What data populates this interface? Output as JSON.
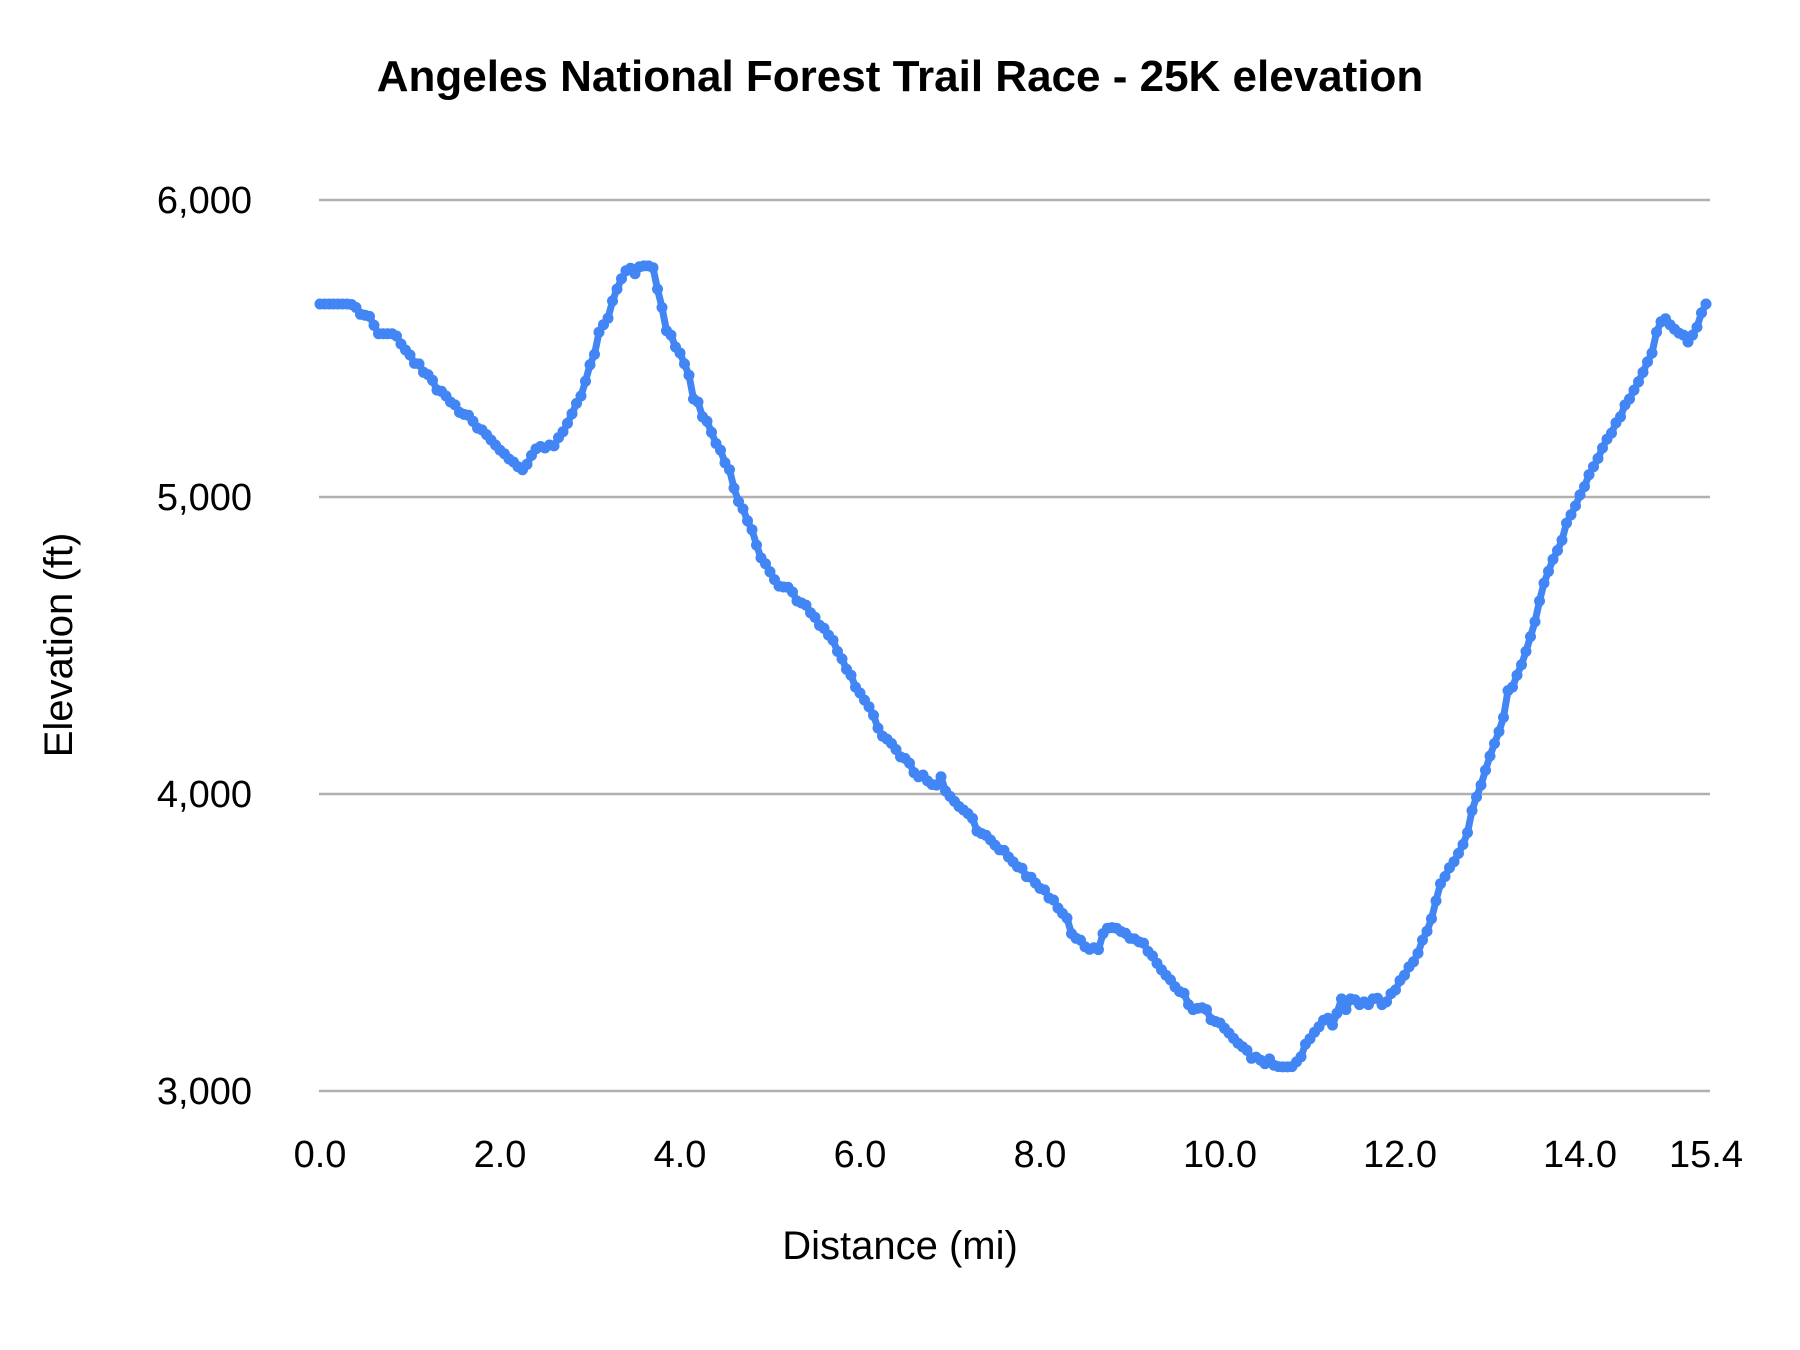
{
  "chart_data": {
    "type": "line",
    "title": "Angeles National Forest Trail Race - 25K elevation",
    "xlabel": "Distance (mi)",
    "ylabel": "Elevation (ft)",
    "xlim": [
      0,
      15.4
    ],
    "ylim": [
      3000,
      6200
    ],
    "grid": true,
    "legend": "none",
    "gridline_color": "#b0b0b0",
    "x_ticks": [
      {
        "value": 0,
        "label": "0.0"
      },
      {
        "value": 2,
        "label": "2.0"
      },
      {
        "value": 4,
        "label": "4.0"
      },
      {
        "value": 6,
        "label": "6.0"
      },
      {
        "value": 8,
        "label": "8.0"
      },
      {
        "value": 10,
        "label": "10.0"
      },
      {
        "value": 12,
        "label": "12.0"
      },
      {
        "value": 14,
        "label": "14.0"
      },
      {
        "value": 15.4,
        "label": "15.4"
      }
    ],
    "y_ticks": [
      {
        "value": 3000,
        "label": "3,000"
      },
      {
        "value": 4000,
        "label": "4,000"
      },
      {
        "value": 5000,
        "label": "5,000"
      },
      {
        "value": 6000,
        "label": "6,000"
      }
    ],
    "series": [
      {
        "name": "elevation",
        "color": "#4285F4",
        "marker": "circle",
        "points": [
          [
            0,
            5650
          ],
          [
            0.05,
            5650
          ],
          [
            0.1,
            5650
          ],
          [
            0.15,
            5650
          ],
          [
            0.2,
            5650
          ],
          [
            0.25,
            5650
          ],
          [
            0.3,
            5650
          ],
          [
            0.35,
            5648
          ],
          [
            0.4,
            5638
          ],
          [
            0.45,
            5615
          ],
          [
            0.5,
            5612
          ],
          [
            0.55,
            5608
          ],
          [
            0.6,
            5578
          ],
          [
            0.65,
            5550
          ],
          [
            0.7,
            5550
          ],
          [
            0.75,
            5550
          ],
          [
            0.8,
            5550
          ],
          [
            0.85,
            5542
          ],
          [
            0.9,
            5515
          ],
          [
            0.95,
            5495
          ],
          [
            1,
            5478
          ],
          [
            1.05,
            5450
          ],
          [
            1.1,
            5448
          ],
          [
            1.15,
            5420
          ],
          [
            1.2,
            5412
          ],
          [
            1.25,
            5393
          ],
          [
            1.3,
            5360
          ],
          [
            1.35,
            5356
          ],
          [
            1.4,
            5340
          ],
          [
            1.45,
            5320
          ],
          [
            1.5,
            5310
          ],
          [
            1.55,
            5285
          ],
          [
            1.6,
            5278
          ],
          [
            1.65,
            5275
          ],
          [
            1.7,
            5255
          ],
          [
            1.75,
            5232
          ],
          [
            1.8,
            5226
          ],
          [
            1.85,
            5210
          ],
          [
            1.9,
            5192
          ],
          [
            1.95,
            5175
          ],
          [
            2,
            5158
          ],
          [
            2.05,
            5145
          ],
          [
            2.1,
            5128
          ],
          [
            2.15,
            5118
          ],
          [
            2.2,
            5102
          ],
          [
            2.25,
            5092
          ],
          [
            2.3,
            5110
          ],
          [
            2.35,
            5140
          ],
          [
            2.4,
            5162
          ],
          [
            2.45,
            5170
          ],
          [
            2.5,
            5165
          ],
          [
            2.55,
            5175
          ],
          [
            2.6,
            5172
          ],
          [
            2.65,
            5200
          ],
          [
            2.7,
            5220
          ],
          [
            2.75,
            5248
          ],
          [
            2.8,
            5280
          ],
          [
            2.85,
            5315
          ],
          [
            2.9,
            5340
          ],
          [
            2.95,
            5390
          ],
          [
            3,
            5445
          ],
          [
            3.05,
            5480
          ],
          [
            3.1,
            5555
          ],
          [
            3.15,
            5580
          ],
          [
            3.2,
            5602
          ],
          [
            3.25,
            5660
          ],
          [
            3.3,
            5700
          ],
          [
            3.35,
            5735
          ],
          [
            3.4,
            5762
          ],
          [
            3.45,
            5770
          ],
          [
            3.5,
            5752
          ],
          [
            3.55,
            5775
          ],
          [
            3.6,
            5778
          ],
          [
            3.65,
            5778
          ],
          [
            3.7,
            5772
          ],
          [
            3.75,
            5700
          ],
          [
            3.8,
            5638
          ],
          [
            3.85,
            5560
          ],
          [
            3.9,
            5545
          ],
          [
            3.95,
            5505
          ],
          [
            4,
            5485
          ],
          [
            4.05,
            5448
          ],
          [
            4.1,
            5410
          ],
          [
            4.15,
            5330
          ],
          [
            4.2,
            5320
          ],
          [
            4.25,
            5270
          ],
          [
            4.3,
            5255
          ],
          [
            4.35,
            5218
          ],
          [
            4.4,
            5180
          ],
          [
            4.45,
            5158
          ],
          [
            4.5,
            5115
          ],
          [
            4.55,
            5092
          ],
          [
            4.6,
            5030
          ],
          [
            4.65,
            4985
          ],
          [
            4.7,
            4960
          ],
          [
            4.75,
            4920
          ],
          [
            4.8,
            4890
          ],
          [
            4.85,
            4838
          ],
          [
            4.9,
            4795
          ],
          [
            4.95,
            4775
          ],
          [
            5,
            4748
          ],
          [
            5.05,
            4722
          ],
          [
            5.1,
            4700
          ],
          [
            5.15,
            4697
          ],
          [
            5.2,
            4696
          ],
          [
            5.25,
            4680
          ],
          [
            5.3,
            4650
          ],
          [
            5.35,
            4643
          ],
          [
            5.4,
            4636
          ],
          [
            5.45,
            4610
          ],
          [
            5.5,
            4595
          ],
          [
            5.55,
            4568
          ],
          [
            5.6,
            4558
          ],
          [
            5.65,
            4535
          ],
          [
            5.7,
            4518
          ],
          [
            5.75,
            4480
          ],
          [
            5.8,
            4455
          ],
          [
            5.85,
            4420
          ],
          [
            5.9,
            4400
          ],
          [
            5.95,
            4360
          ],
          [
            6,
            4340
          ],
          [
            6.05,
            4316
          ],
          [
            6.1,
            4294
          ],
          [
            6.15,
            4265
          ],
          [
            6.2,
            4222
          ],
          [
            6.25,
            4195
          ],
          [
            6.3,
            4185
          ],
          [
            6.35,
            4170
          ],
          [
            6.4,
            4150
          ],
          [
            6.45,
            4125
          ],
          [
            6.5,
            4120
          ],
          [
            6.55,
            4104
          ],
          [
            6.6,
            4072
          ],
          [
            6.65,
            4058
          ],
          [
            6.7,
            4064
          ],
          [
            6.75,
            4044
          ],
          [
            6.8,
            4032
          ],
          [
            6.85,
            4030
          ],
          [
            6.9,
            4058
          ],
          [
            6.95,
            4010
          ],
          [
            7,
            3992
          ],
          [
            7.05,
            3975
          ],
          [
            7.1,
            3958
          ],
          [
            7.15,
            3946
          ],
          [
            7.2,
            3934
          ],
          [
            7.25,
            3918
          ],
          [
            7.3,
            3875
          ],
          [
            7.35,
            3867
          ],
          [
            7.4,
            3861
          ],
          [
            7.45,
            3845
          ],
          [
            7.5,
            3828
          ],
          [
            7.55,
            3812
          ],
          [
            7.6,
            3810
          ],
          [
            7.65,
            3788
          ],
          [
            7.7,
            3772
          ],
          [
            7.75,
            3755
          ],
          [
            7.8,
            3750
          ],
          [
            7.85,
            3722
          ],
          [
            7.9,
            3720
          ],
          [
            7.95,
            3700
          ],
          [
            8,
            3682
          ],
          [
            8.05,
            3677
          ],
          [
            8.1,
            3650
          ],
          [
            8.15,
            3643
          ],
          [
            8.2,
            3616
          ],
          [
            8.25,
            3598
          ],
          [
            8.3,
            3582
          ],
          [
            8.35,
            3530
          ],
          [
            8.4,
            3514
          ],
          [
            8.45,
            3508
          ],
          [
            8.5,
            3486
          ],
          [
            8.55,
            3477
          ],
          [
            8.6,
            3482
          ],
          [
            8.65,
            3476
          ],
          [
            8.7,
            3530
          ],
          [
            8.75,
            3548
          ],
          [
            8.8,
            3550
          ],
          [
            8.85,
            3548
          ],
          [
            8.9,
            3537
          ],
          [
            8.95,
            3531
          ],
          [
            9,
            3514
          ],
          [
            9.05,
            3512
          ],
          [
            9.1,
            3502
          ],
          [
            9.15,
            3498
          ],
          [
            9.2,
            3470
          ],
          [
            9.25,
            3455
          ],
          [
            9.3,
            3430
          ],
          [
            9.35,
            3408
          ],
          [
            9.4,
            3390
          ],
          [
            9.45,
            3374
          ],
          [
            9.5,
            3351
          ],
          [
            9.55,
            3335
          ],
          [
            9.6,
            3329
          ],
          [
            9.65,
            3291
          ],
          [
            9.7,
            3274
          ],
          [
            9.75,
            3278
          ],
          [
            9.8,
            3280
          ],
          [
            9.85,
            3274
          ],
          [
            9.9,
            3240
          ],
          [
            9.95,
            3234
          ],
          [
            10,
            3229
          ],
          [
            10.05,
            3211
          ],
          [
            10.1,
            3195
          ],
          [
            10.15,
            3177
          ],
          [
            10.2,
            3161
          ],
          [
            10.25,
            3149
          ],
          [
            10.3,
            3137
          ],
          [
            10.35,
            3110
          ],
          [
            10.4,
            3114
          ],
          [
            10.45,
            3104
          ],
          [
            10.5,
            3092
          ],
          [
            10.55,
            3108
          ],
          [
            10.6,
            3087
          ],
          [
            10.65,
            3082
          ],
          [
            10.7,
            3081
          ],
          [
            10.75,
            3081
          ],
          [
            10.8,
            3082
          ],
          [
            10.85,
            3098
          ],
          [
            10.9,
            3115
          ],
          [
            10.95,
            3158
          ],
          [
            11,
            3176
          ],
          [
            11.05,
            3198
          ],
          [
            11.1,
            3216
          ],
          [
            11.15,
            3238
          ],
          [
            11.2,
            3245
          ],
          [
            11.25,
            3222
          ],
          [
            11.3,
            3262
          ],
          [
            11.35,
            3310
          ],
          [
            11.4,
            3274
          ],
          [
            11.45,
            3310
          ],
          [
            11.5,
            3307
          ],
          [
            11.55,
            3291
          ],
          [
            11.6,
            3300
          ],
          [
            11.65,
            3291
          ],
          [
            11.7,
            3310
          ],
          [
            11.75,
            3312
          ],
          [
            11.8,
            3291
          ],
          [
            11.85,
            3300
          ],
          [
            11.9,
            3328
          ],
          [
            11.95,
            3340
          ],
          [
            12,
            3372
          ],
          [
            12.05,
            3390
          ],
          [
            12.1,
            3418
          ],
          [
            12.15,
            3435
          ],
          [
            12.2,
            3464
          ],
          [
            12.25,
            3508
          ],
          [
            12.3,
            3538
          ],
          [
            12.35,
            3580
          ],
          [
            12.4,
            3640
          ],
          [
            12.45,
            3698
          ],
          [
            12.5,
            3722
          ],
          [
            12.55,
            3752
          ],
          [
            12.6,
            3772
          ],
          [
            12.65,
            3800
          ],
          [
            12.7,
            3830
          ],
          [
            12.75,
            3870
          ],
          [
            12.8,
            3944
          ],
          [
            12.85,
            3990
          ],
          [
            12.9,
            4030
          ],
          [
            12.95,
            4080
          ],
          [
            13,
            4128
          ],
          [
            13.05,
            4170
          ],
          [
            13.1,
            4210
          ],
          [
            13.15,
            4258
          ],
          [
            13.2,
            4348
          ],
          [
            13.25,
            4360
          ],
          [
            13.3,
            4400
          ],
          [
            13.35,
            4435
          ],
          [
            13.4,
            4480
          ],
          [
            13.45,
            4530
          ],
          [
            13.5,
            4580
          ],
          [
            13.55,
            4650
          ],
          [
            13.6,
            4710
          ],
          [
            13.65,
            4750
          ],
          [
            13.7,
            4790
          ],
          [
            13.75,
            4820
          ],
          [
            13.8,
            4855
          ],
          [
            13.85,
            4912
          ],
          [
            13.9,
            4940
          ],
          [
            13.95,
            4970
          ],
          [
            14,
            5007
          ],
          [
            14.05,
            5035
          ],
          [
            14.1,
            5075
          ],
          [
            14.15,
            5102
          ],
          [
            14.2,
            5130
          ],
          [
            14.25,
            5165
          ],
          [
            14.3,
            5195
          ],
          [
            14.35,
            5215
          ],
          [
            14.4,
            5250
          ],
          [
            14.45,
            5270
          ],
          [
            14.5,
            5310
          ],
          [
            14.55,
            5330
          ],
          [
            14.6,
            5360
          ],
          [
            14.65,
            5388
          ],
          [
            14.7,
            5420
          ],
          [
            14.75,
            5455
          ],
          [
            14.8,
            5485
          ],
          [
            14.85,
            5555
          ],
          [
            14.9,
            5590
          ],
          [
            14.95,
            5600
          ],
          [
            15,
            5580
          ],
          [
            15.05,
            5565
          ],
          [
            15.1,
            5552
          ],
          [
            15.15,
            5545
          ],
          [
            15.2,
            5522
          ],
          [
            15.25,
            5545
          ],
          [
            15.3,
            5572
          ],
          [
            15.35,
            5620
          ],
          [
            15.4,
            5650
          ]
        ]
      }
    ]
  }
}
